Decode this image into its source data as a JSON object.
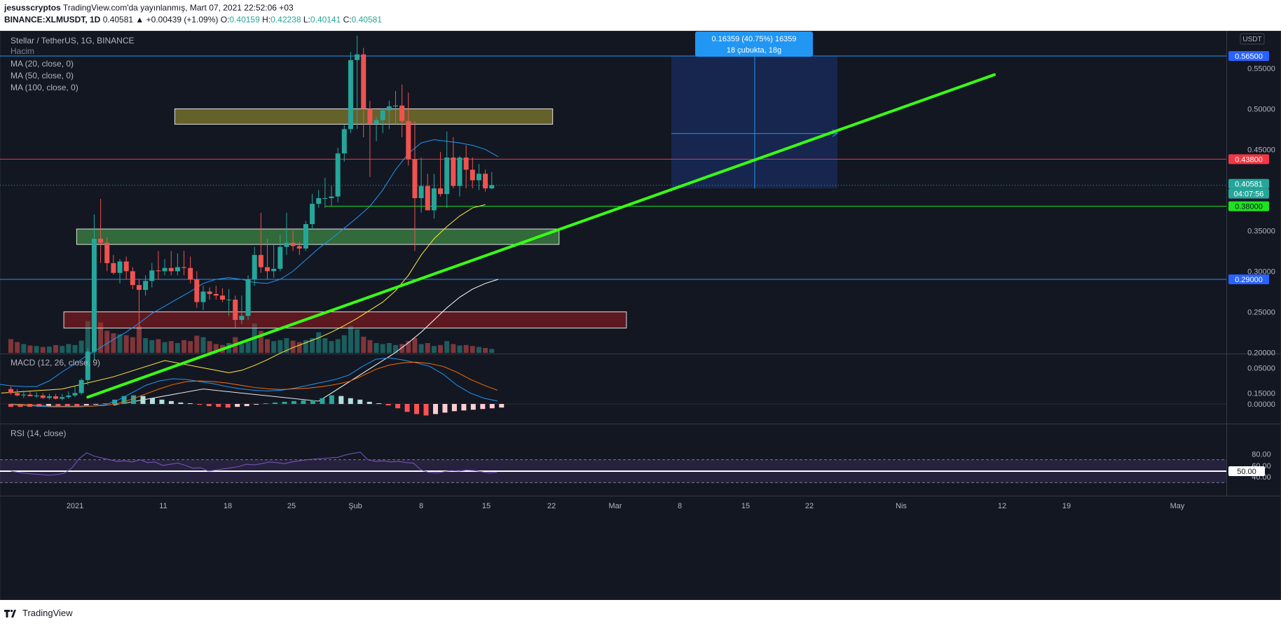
{
  "header": {
    "author": "jesusscryptos",
    "published": "TradingView.com'da yayınlanmış, Mart 07, 2021 22:52:06 +03",
    "symbol": "BINANCE:XLMUSDT, 1D",
    "last": "0.40581",
    "change": "▲ +0.00439 (+1.09%)",
    "o_label": "O:",
    "o": "0.40159",
    "h_label": "H:",
    "h": "0.42238",
    "l_label": "L:",
    "l": "0.40141",
    "c_label": "C:",
    "c": "0.40581"
  },
  "legend": {
    "title": "Stellar / TetherUS, 1G, BINANCE",
    "volume": "Hacim",
    "ma20": "MA (20, close, 0)",
    "ma50": "MA (50, close, 0)",
    "ma100": "MA (100, close, 0)"
  },
  "currency": "USDT",
  "measure": {
    "line1": "0.16359 (40.75%) 16359",
    "line2": "18 çubukta, 18g"
  },
  "price_axis": {
    "ticks": [
      "0.55000",
      "0.50000",
      "0.45000",
      "0.35000",
      "0.30000",
      "0.25000",
      "0.20000",
      "0.15000"
    ]
  },
  "price_labels": [
    {
      "text": "0.56500",
      "color": "#2962ff"
    },
    {
      "text": "0.43800",
      "color": "#f23645"
    },
    {
      "text": "0.40581",
      "color": "#26a69a"
    },
    {
      "text": "04:07:56",
      "color": "#26a69a"
    },
    {
      "text": "0.38000",
      "color": "#1fe21f"
    },
    {
      "text": "0.29000",
      "color": "#2962ff"
    }
  ],
  "macd": {
    "title": "MACD (12, 26, close, 9)",
    "ticks": [
      "0.05000",
      "0.00000"
    ]
  },
  "rsi": {
    "title": "RSI (14, close)",
    "ticks": [
      "80.00",
      "60.00",
      "40.00"
    ],
    "value_label": "50.00"
  },
  "time_axis": [
    "2021",
    "11",
    "18",
    "25",
    "Şub",
    "8",
    "15",
    "22",
    "Mar",
    "8",
    "15",
    "22",
    "Nis",
    "12",
    "19",
    "May"
  ],
  "footer": {
    "brand": "TradingView"
  },
  "colors": {
    "bg": "#131722",
    "up": "#26a69a",
    "down": "#ef5350",
    "ma20": "#2196f3",
    "ma50": "#ffeb3b",
    "ma100": "#ffffff",
    "trend": "#39ff14"
  },
  "chart_data": {
    "type": "candlestick",
    "symbol": "BINANCE:XLMUSDT",
    "timeframe": "1D",
    "dates": [
      "2020-12-22",
      "2020-12-23",
      "2020-12-24",
      "2020-12-25",
      "2020-12-26",
      "2020-12-27",
      "2020-12-28",
      "2020-12-29",
      "2020-12-30",
      "2020-12-31",
      "2021-01-01",
      "2021-01-02",
      "2021-01-03",
      "2021-01-04",
      "2021-01-05",
      "2021-01-06",
      "2021-01-07",
      "2021-01-08",
      "2021-01-09",
      "2021-01-10",
      "2021-01-11",
      "2021-01-12",
      "2021-01-13",
      "2021-01-14",
      "2021-01-15",
      "2021-01-16",
      "2021-01-17",
      "2021-01-18",
      "2021-01-19",
      "2021-01-20",
      "2021-01-21",
      "2021-01-22",
      "2021-01-23",
      "2021-01-24",
      "2021-01-25",
      "2021-01-26",
      "2021-01-27",
      "2021-01-28",
      "2021-01-29",
      "2021-01-30",
      "2021-01-31",
      "2021-02-01",
      "2021-02-02",
      "2021-02-03",
      "2021-02-04",
      "2021-02-05",
      "2021-02-06",
      "2021-02-07",
      "2021-02-08",
      "2021-02-09",
      "2021-02-10",
      "2021-02-11",
      "2021-02-12",
      "2021-02-13",
      "2021-02-14",
      "2021-02-15",
      "2021-02-16",
      "2021-02-17",
      "2021-02-18",
      "2021-02-19",
      "2021-02-20",
      "2021-02-21",
      "2021-02-22",
      "2021-02-23",
      "2021-02-24",
      "2021-02-25",
      "2021-02-26",
      "2021-02-27",
      "2021-02-28",
      "2021-03-01",
      "2021-03-02",
      "2021-03-03",
      "2021-03-04",
      "2021-03-05",
      "2021-03-06",
      "2021-03-07"
    ],
    "open": [
      0.155,
      0.15,
      0.147,
      0.148,
      0.146,
      0.147,
      0.144,
      0.146,
      0.143,
      0.145,
      0.147,
      0.15,
      0.166,
      0.201,
      0.34,
      0.335,
      0.31,
      0.298,
      0.312,
      0.3,
      0.283,
      0.277,
      0.288,
      0.301,
      0.3,
      0.304,
      0.3,
      0.305,
      0.304,
      0.29,
      0.262,
      0.275,
      0.272,
      0.27,
      0.265,
      0.265,
      0.24,
      0.245,
      0.29,
      0.32,
      0.305,
      0.3,
      0.303,
      0.33,
      0.335,
      0.331,
      0.328,
      0.358,
      0.383,
      0.39,
      0.39,
      0.392,
      0.445,
      0.475,
      0.56,
      0.567,
      0.5,
      0.482,
      0.486,
      0.498,
      0.503,
      0.504,
      0.485,
      0.438,
      0.39,
      0.405,
      0.375,
      0.402,
      0.395,
      0.44,
      0.405,
      0.44,
      0.425,
      0.412,
      0.42,
      0.402
    ],
    "high": [
      0.158,
      0.155,
      0.153,
      0.152,
      0.151,
      0.15,
      0.149,
      0.149,
      0.149,
      0.152,
      0.158,
      0.168,
      0.205,
      0.37,
      0.389,
      0.342,
      0.32,
      0.315,
      0.318,
      0.305,
      0.29,
      0.295,
      0.31,
      0.325,
      0.315,
      0.325,
      0.322,
      0.325,
      0.318,
      0.3,
      0.282,
      0.28,
      0.282,
      0.279,
      0.278,
      0.27,
      0.27,
      0.295,
      0.33,
      0.372,
      0.34,
      0.333,
      0.345,
      0.372,
      0.35,
      0.336,
      0.362,
      0.395,
      0.4,
      0.415,
      0.405,
      0.452,
      0.48,
      0.57,
      0.59,
      0.575,
      0.51,
      0.49,
      0.5,
      0.51,
      0.522,
      0.53,
      0.52,
      0.485,
      0.44,
      0.42,
      0.42,
      0.447,
      0.472,
      0.465,
      0.442,
      0.455,
      0.44,
      0.432,
      0.425,
      0.422
    ],
    "low": [
      0.148,
      0.146,
      0.144,
      0.146,
      0.144,
      0.143,
      0.142,
      0.142,
      0.141,
      0.143,
      0.145,
      0.148,
      0.16,
      0.19,
      0.31,
      0.3,
      0.296,
      0.285,
      0.29,
      0.278,
      0.228,
      0.27,
      0.28,
      0.29,
      0.295,
      0.295,
      0.295,
      0.295,
      0.285,
      0.255,
      0.252,
      0.265,
      0.265,
      0.262,
      0.245,
      0.23,
      0.235,
      0.24,
      0.282,
      0.298,
      0.29,
      0.292,
      0.3,
      0.32,
      0.325,
      0.32,
      0.325,
      0.352,
      0.378,
      0.378,
      0.38,
      0.385,
      0.435,
      0.47,
      0.475,
      0.465,
      0.416,
      0.46,
      0.47,
      0.475,
      0.48,
      0.465,
      0.43,
      0.325,
      0.372,
      0.375,
      0.365,
      0.392,
      0.378,
      0.402,
      0.392,
      0.402,
      0.402,
      0.4,
      0.398,
      0.401
    ],
    "close": [
      0.15,
      0.147,
      0.148,
      0.146,
      0.147,
      0.144,
      0.146,
      0.143,
      0.145,
      0.147,
      0.15,
      0.166,
      0.201,
      0.34,
      0.335,
      0.31,
      0.298,
      0.312,
      0.3,
      0.283,
      0.277,
      0.288,
      0.301,
      0.3,
      0.304,
      0.3,
      0.305,
      0.304,
      0.29,
      0.262,
      0.275,
      0.272,
      0.27,
      0.265,
      0.265,
      0.24,
      0.245,
      0.29,
      0.32,
      0.305,
      0.3,
      0.303,
      0.33,
      0.335,
      0.331,
      0.328,
      0.358,
      0.383,
      0.39,
      0.39,
      0.392,
      0.445,
      0.475,
      0.56,
      0.567,
      0.5,
      0.482,
      0.486,
      0.498,
      0.503,
      0.504,
      0.485,
      0.438,
      0.39,
      0.405,
      0.375,
      0.402,
      0.395,
      0.44,
      0.405,
      0.44,
      0.425,
      0.412,
      0.42,
      0.402,
      0.406
    ],
    "volume": [
      0.28,
      0.22,
      0.18,
      0.15,
      0.14,
      0.12,
      0.13,
      0.16,
      0.14,
      0.18,
      0.16,
      0.25,
      0.65,
      1.0,
      0.62,
      0.45,
      0.4,
      0.38,
      0.36,
      0.32,
      0.55,
      0.3,
      0.26,
      0.28,
      0.22,
      0.24,
      0.2,
      0.26,
      0.24,
      0.35,
      0.32,
      0.24,
      0.18,
      0.16,
      0.2,
      0.32,
      0.18,
      0.22,
      0.6,
      0.45,
      0.28,
      0.24,
      0.26,
      0.3,
      0.25,
      0.22,
      0.26,
      0.3,
      0.42,
      0.3,
      0.24,
      0.28,
      0.36,
      0.55,
      0.48,
      0.33,
      0.26,
      0.2,
      0.18,
      0.2,
      0.16,
      0.18,
      0.24,
      0.3,
      0.18,
      0.2,
      0.14,
      0.16,
      0.24,
      0.18,
      0.15,
      0.16,
      0.14,
      0.12,
      0.1,
      0.08
    ],
    "ma_values": {
      "ma20": [
        0.165,
        0.163,
        0.161,
        0.159,
        0.158,
        0.158,
        0.165,
        0.176,
        0.186,
        0.197,
        0.206,
        0.216,
        0.225,
        0.236,
        0.248,
        0.257,
        0.266,
        0.275,
        0.285,
        0.29,
        0.292,
        0.29,
        0.286,
        0.285,
        0.29,
        0.3,
        0.314,
        0.328,
        0.34,
        0.353,
        0.366,
        0.38,
        0.4,
        0.425,
        0.445,
        0.458,
        0.462,
        0.46,
        0.458,
        0.455,
        0.45,
        0.441
      ],
      "ma50": [
        0.175,
        0.178,
        0.184,
        0.191,
        0.199,
        0.206,
        0.212,
        0.218,
        0.225,
        0.233,
        0.242,
        0.252,
        0.262,
        0.276,
        0.295,
        0.32,
        0.34,
        0.355,
        0.368,
        0.378,
        0.382
      ],
      "ma100": [
        0.14,
        0.15,
        0.16,
        0.17,
        0.18,
        0.19,
        0.2,
        0.212,
        0.225,
        0.24,
        0.255,
        0.268,
        0.278,
        0.285,
        0.29
      ]
    },
    "levels": [
      0.565,
      0.438,
      0.38,
      0.29
    ],
    "zones": [
      {
        "from": 0.481,
        "to": 0.5,
        "color": "yellow"
      },
      {
        "from": 0.333,
        "to": 0.352,
        "color": "green"
      },
      {
        "from": 0.23,
        "to": 0.25,
        "color": "red"
      }
    ],
    "trendline": {
      "from": [
        "2021-01-03",
        0.145
      ],
      "to": [
        "2021-04-13",
        0.542
      ]
    },
    "price_range": {
      "from": 0.402,
      "to": 0.565,
      "change": "0.16359 (40.75%)",
      "bars": 18
    },
    "macd": {
      "macd": [
        -0.001,
        -0.002,
        -0.003,
        -0.004,
        -0.004,
        -0.004,
        -0.003,
        -0.001,
        0.006,
        0.016,
        0.026,
        0.032,
        0.035,
        0.034,
        0.031,
        0.028,
        0.024,
        0.021,
        0.019,
        0.018,
        0.019,
        0.022,
        0.026,
        0.03,
        0.034,
        0.04,
        0.052,
        0.062,
        0.064,
        0.061,
        0.057,
        0.052,
        0.041,
        0.026,
        0.015,
        0.008,
        0.004
      ],
      "signal": [
        0.0,
        -0.001,
        -0.002,
        -0.003,
        -0.003,
        -0.003,
        -0.003,
        -0.002,
        0.001,
        0.007,
        0.014,
        0.021,
        0.027,
        0.031,
        0.032,
        0.031,
        0.029,
        0.026,
        0.023,
        0.021,
        0.02,
        0.021,
        0.022,
        0.024,
        0.027,
        0.031,
        0.039,
        0.048,
        0.054,
        0.057,
        0.058,
        0.056,
        0.052,
        0.044,
        0.034,
        0.026,
        0.019
      ],
      "histogram": [
        -0.004,
        -0.004,
        -0.004,
        -0.004,
        -0.003,
        -0.003,
        -0.003,
        -0.003,
        -0.002,
        -0.001,
        0.001,
        0.006,
        0.011,
        0.012,
        0.011,
        0.008,
        0.006,
        0.004,
        0.002,
        0.001,
        -0.001,
        -0.003,
        -0.004,
        -0.005,
        -0.004,
        -0.003,
        -0.001,
        0.001,
        0.002,
        0.003,
        0.004,
        0.005,
        0.005,
        0.008,
        0.012,
        0.011,
        0.008,
        0.006,
        0.003,
        0.001,
        -0.002,
        -0.006,
        -0.011,
        -0.014,
        -0.016,
        -0.014,
        -0.012,
        -0.01,
        -0.009,
        -0.008,
        -0.007,
        -0.006,
        -0.005
      ]
    },
    "rsi": {
      "values": [
        50,
        48,
        46,
        45,
        44,
        43,
        44,
        46,
        55,
        72,
        82,
        76,
        73,
        70,
        67,
        68,
        66,
        70,
        65,
        66,
        60,
        62,
        64,
        60,
        55,
        56,
        50,
        52,
        54,
        56,
        58,
        62,
        61,
        63,
        66,
        65,
        63,
        66,
        68,
        70,
        71,
        72,
        73,
        74,
        78,
        81,
        83,
        70,
        67,
        68,
        66,
        67,
        65,
        64,
        52,
        48,
        47,
        49,
        51,
        50,
        52,
        51,
        49,
        47,
        48
      ],
      "bands": [
        70,
        50,
        30
      ]
    }
  }
}
